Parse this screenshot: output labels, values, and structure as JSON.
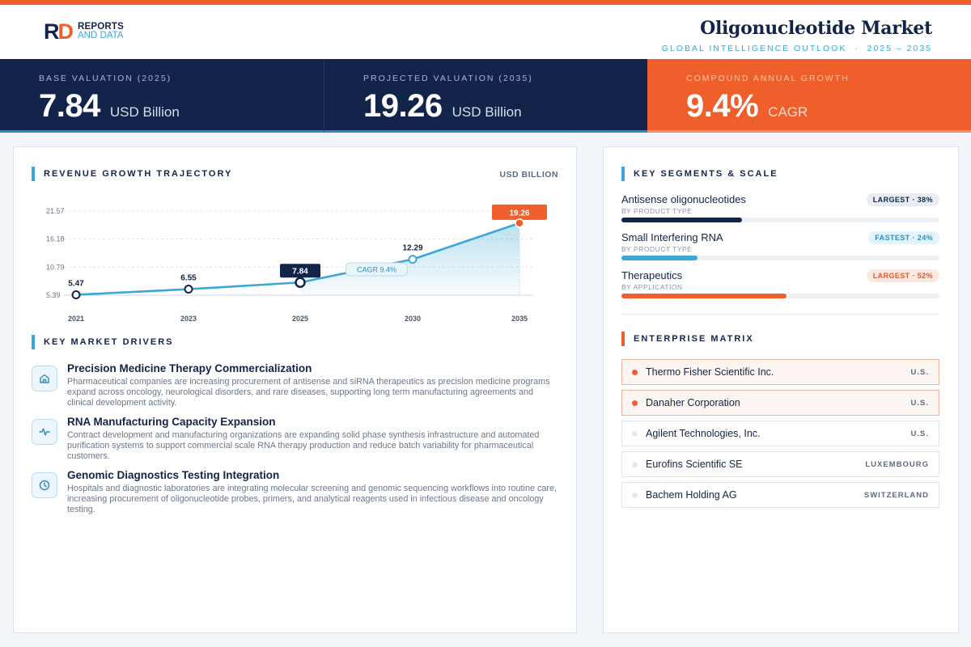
{
  "brand": {
    "line1": "REPORTS",
    "line2": "AND DATA"
  },
  "header": {
    "title": "Oligonucleotide Market",
    "subtitle": "GLOBAL INTELLIGENCE OUTLOOK  ·  2025 – 2035"
  },
  "kpis": [
    {
      "label": "BASE VALUATION (2025)",
      "value": "7.84",
      "unit": "USD Billion"
    },
    {
      "label": "PROJECTED VALUATION (2035)",
      "value": "19.26",
      "unit": "USD Billion"
    },
    {
      "label": "COMPOUND ANNUAL GROWTH",
      "value": "9.4%",
      "unit": "CAGR"
    }
  ],
  "chart_section": {
    "title": "REVENUE GROWTH TRAJECTORY",
    "unit": "USD BILLION"
  },
  "chart_data": {
    "type": "area",
    "x": [
      "2021",
      "2023",
      "2025",
      "2030",
      "2035"
    ],
    "values": [
      5.47,
      6.55,
      7.84,
      12.29,
      19.26
    ],
    "value_labels": [
      "5.47",
      "6.55",
      "7.84",
      "12.29",
      "19.26"
    ],
    "yticks": [
      "21.57",
      "16.18",
      "10.79",
      "5.39"
    ],
    "ytick_values": [
      21.57,
      16.18,
      10.79,
      5.39
    ],
    "ylim": [
      5.39,
      21.57
    ],
    "highlight_base": "2025",
    "highlight_end": "2035",
    "annotation": "CAGR 9.4%",
    "grid": true,
    "colors": {
      "line": "#3aa7d7",
      "highlight": "#12244a",
      "end": "#ef5f2b"
    }
  },
  "drivers_section": {
    "title": "KEY MARKET DRIVERS"
  },
  "drivers": [
    {
      "icon": "home-icon",
      "title": "Precision Medicine Therapy Commercialization",
      "desc": "Pharmaceutical companies are increasing procurement of antisense and siRNA therapeutics as precision medicine programs expand across oncology, neurological disorders, and rare diseases, supporting long term manufacturing agreements and clinical development activity."
    },
    {
      "icon": "activity-icon",
      "title": "RNA Manufacturing Capacity Expansion",
      "desc": "Contract development and manufacturing organizations are expanding solid phase synthesis infrastructure and automated purification systems to support commercial scale RNA therapy production and reduce batch variability for pharmaceutical customers."
    },
    {
      "icon": "clock-icon",
      "title": "Genomic Diagnostics Testing Integration",
      "desc": "Hospitals and diagnostic laboratories are integrating molecular screening and genomic sequencing workflows into routine care, increasing procurement of oligonucleotide probes, primers, and analytical reagents used in infectious disease and oncology testing."
    }
  ],
  "segments_section": {
    "title": "KEY SEGMENTS & SCALE"
  },
  "segments": [
    {
      "name": "Antisense oligonucleotides",
      "category": "BY PRODUCT TYPE",
      "badge": "LARGEST · 38%",
      "share": 0.38,
      "color": "#12244a"
    },
    {
      "name": "Small Interfering RNA",
      "category": "BY PRODUCT TYPE",
      "badge": "FASTEST · 24%",
      "share": 0.24,
      "color": "#3aa7d7"
    },
    {
      "name": "Therapeutics",
      "category": "BY APPLICATION",
      "badge": "LARGEST · 52%",
      "share": 0.52,
      "color": "#ef5f2b"
    }
  ],
  "matrix_section": {
    "title": "ENTERPRISE MATRIX"
  },
  "enterprises": [
    {
      "name": "Thermo Fisher Scientific Inc.",
      "country": "U.S."
    },
    {
      "name": "Danaher Corporation",
      "country": "U.S."
    },
    {
      "name": "Agilent Technologies, Inc.",
      "country": "U.S."
    },
    {
      "name": "Eurofins Scientific SE",
      "country": "LUXEMBOURG"
    },
    {
      "name": "Bachem Holding AG",
      "country": "SWITZERLAND"
    }
  ]
}
